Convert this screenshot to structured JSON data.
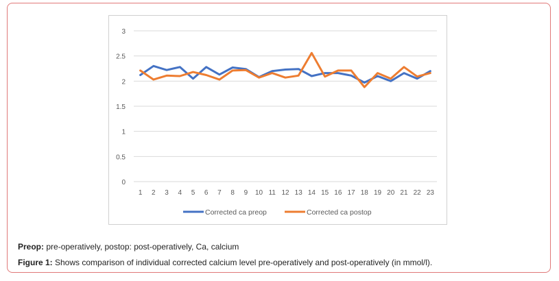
{
  "colors": {
    "frame_border": "#e07878",
    "preop": "#4472c4",
    "postop": "#ed7d31",
    "grid": "#d9d9d9",
    "tick_text": "#595959"
  },
  "chart_data": {
    "type": "line",
    "categories": [
      "1",
      "2",
      "3",
      "4",
      "5",
      "6",
      "7",
      "8",
      "9",
      "10",
      "11",
      "12",
      "13",
      "14",
      "15",
      "16",
      "17",
      "18",
      "19",
      "20",
      "21",
      "22",
      "23"
    ],
    "series": [
      {
        "name": "Corrected ca preop",
        "values": [
          2.12,
          2.3,
          2.22,
          2.28,
          2.05,
          2.28,
          2.13,
          2.27,
          2.24,
          2.08,
          2.2,
          2.23,
          2.24,
          2.1,
          2.16,
          2.16,
          2.11,
          1.97,
          2.1,
          2.0,
          2.16,
          2.05,
          2.2
        ]
      },
      {
        "name": "Corrected ca postop",
        "values": [
          2.21,
          2.03,
          2.11,
          2.1,
          2.18,
          2.12,
          2.03,
          2.21,
          2.22,
          2.07,
          2.16,
          2.07,
          2.11,
          2.56,
          2.09,
          2.21,
          2.21,
          1.88,
          2.16,
          2.05,
          2.28,
          2.09,
          2.16
        ]
      }
    ],
    "ylim": [
      0,
      3
    ],
    "yticks": [
      "0",
      "0.5",
      "1",
      "1.5",
      "2",
      "2.5",
      "3"
    ],
    "grid": true,
    "legend_position": "bottom"
  },
  "caption": {
    "line1_bold": "Preop:",
    "line1_text": " pre-operatively, postop: post-operatively, Ca, calcium",
    "line2_bold": "Figure 1:",
    "line2_text": " Shows comparison of individual corrected calcium level pre-operatively and post-operatively (in mmol/l)."
  }
}
